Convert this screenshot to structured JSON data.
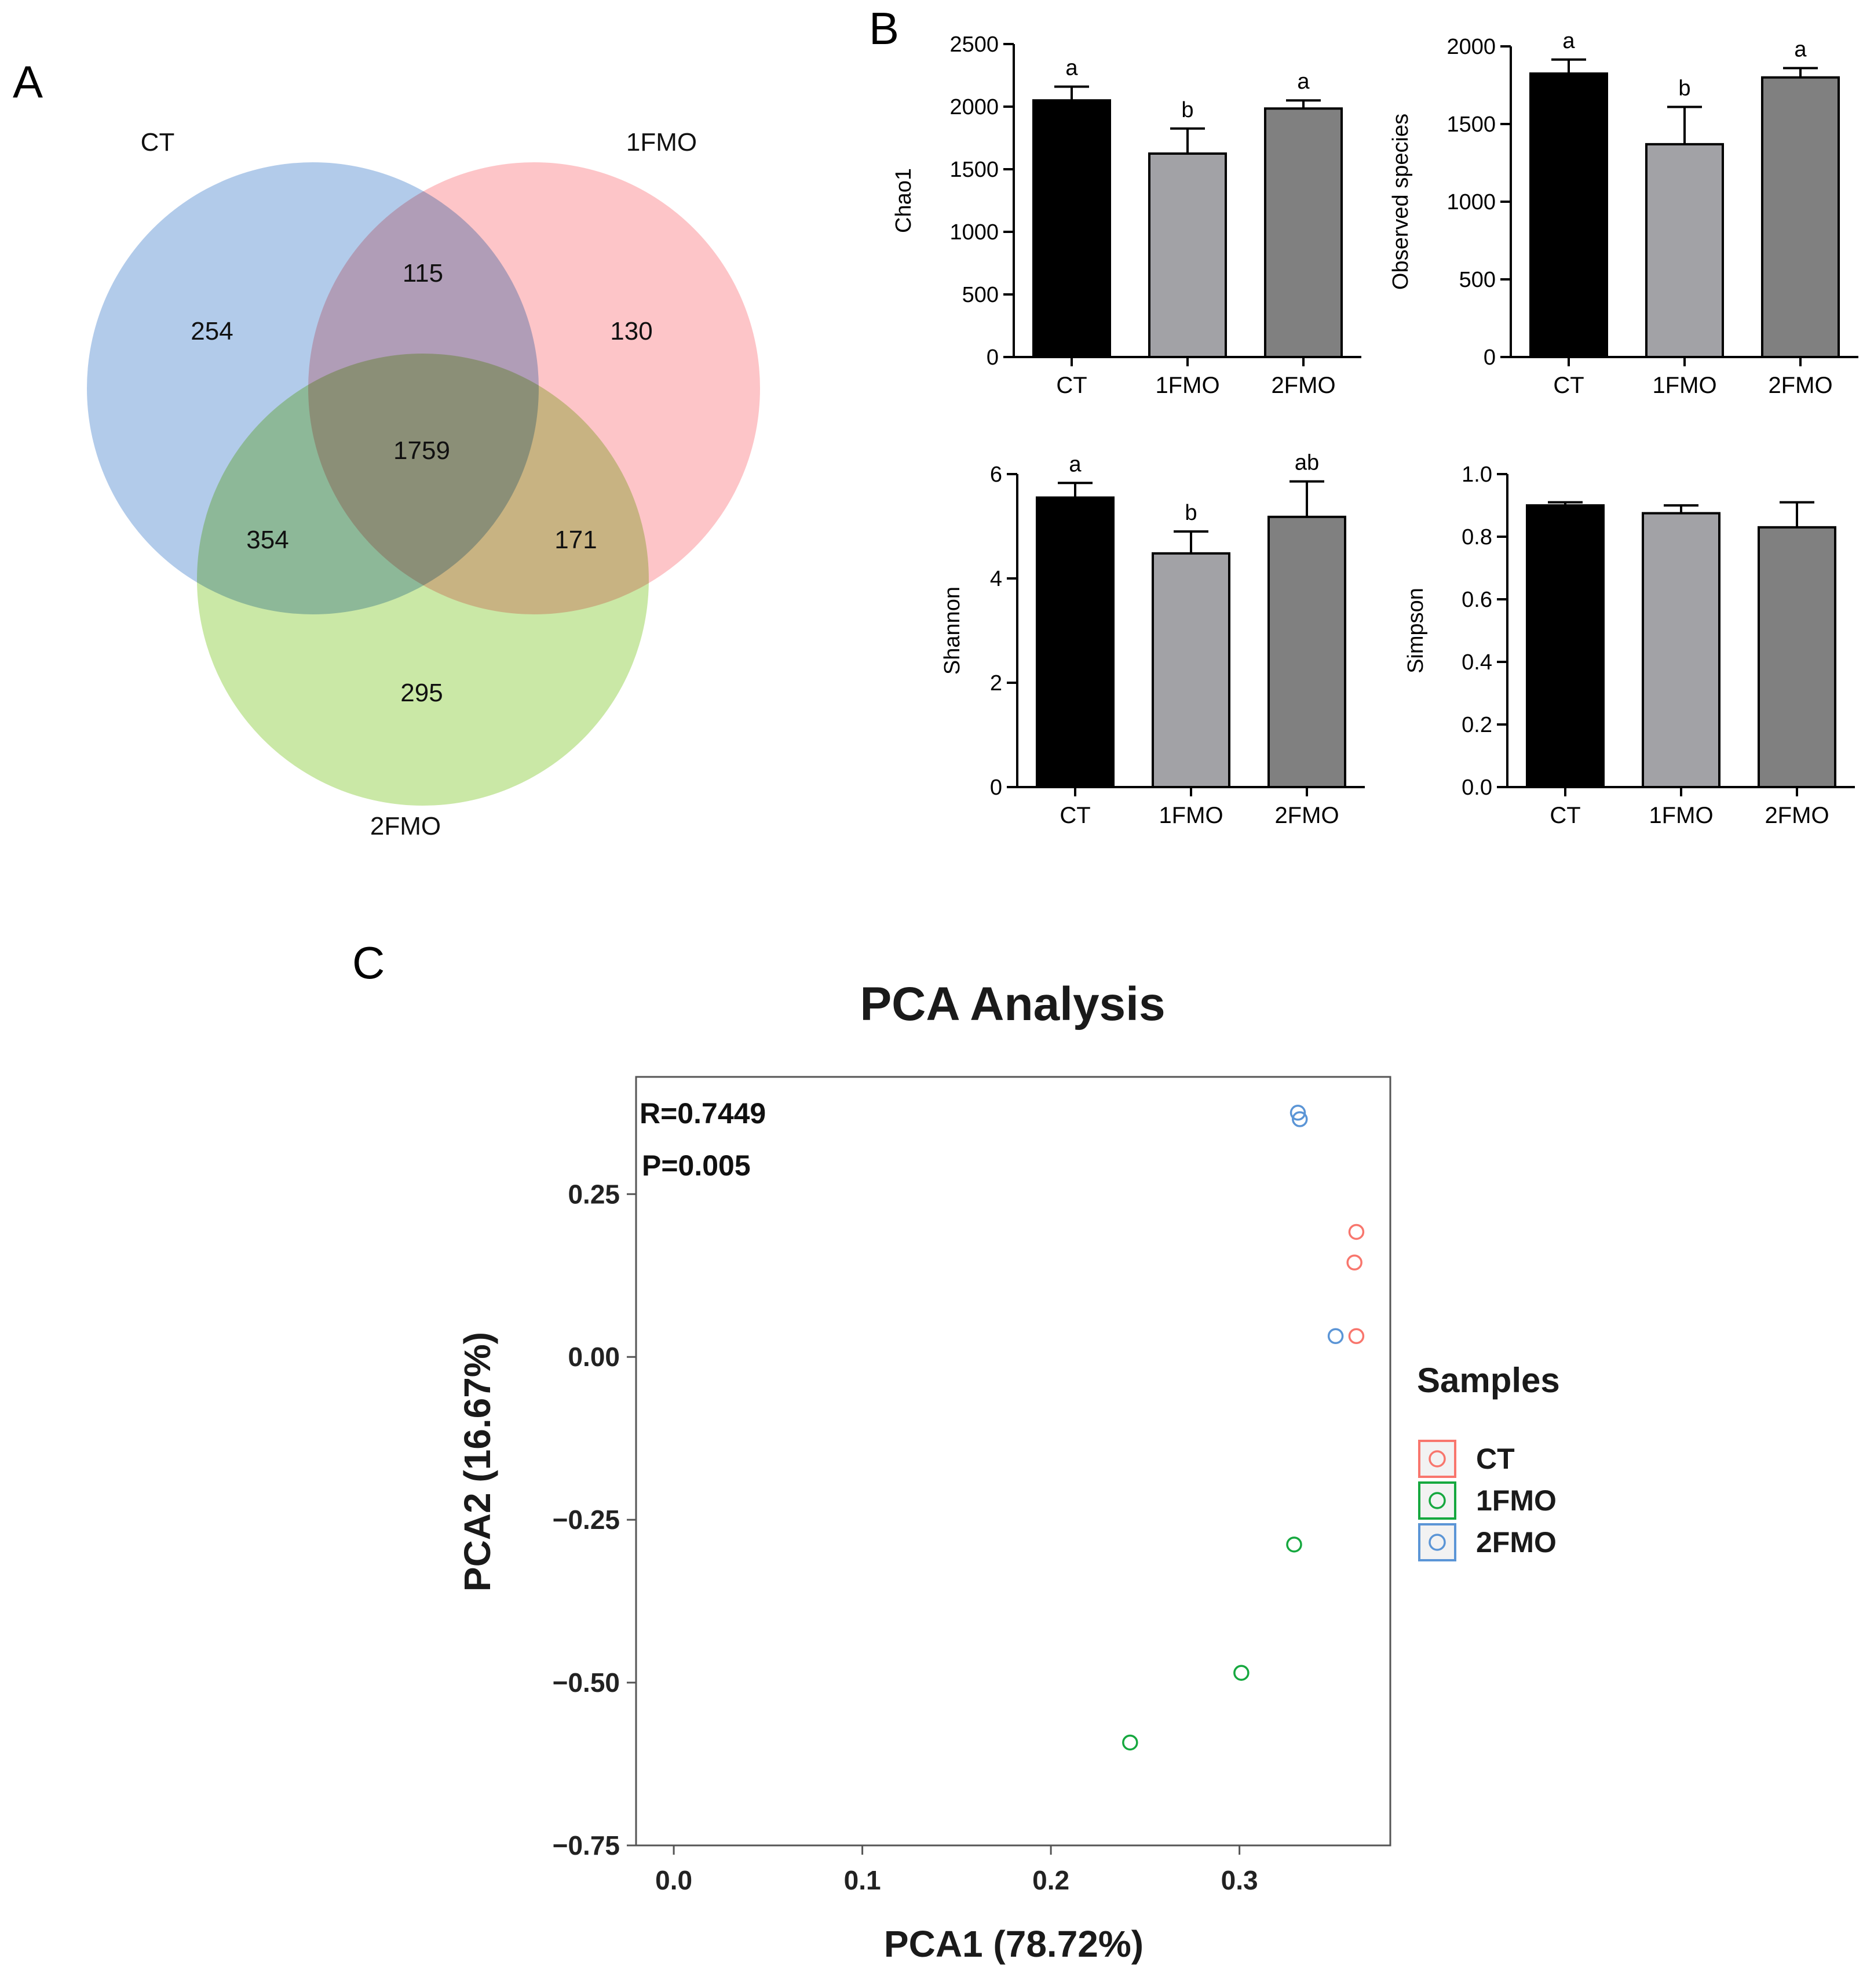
{
  "panel_labels": {
    "a": "A",
    "b": "B",
    "c": "C"
  },
  "venn": {
    "sets": [
      {
        "name": "CT",
        "color": "#7ea9dc"
      },
      {
        "name": "1FMO",
        "color": "#fb9ea4"
      },
      {
        "name": "2FMO",
        "color": "#a6d86b"
      }
    ],
    "counts": {
      "ct_only": "254",
      "fmo1_only": "130",
      "fmo2_only": "295",
      "ct_fmo1": "115",
      "ct_fmo2": "354",
      "fmo1_fmo2": "171",
      "all": "1759"
    }
  },
  "chart_data": [
    {
      "type": "bar",
      "ylabel": "Chao1",
      "categories": [
        "CT",
        "1FMO",
        "2FMO"
      ],
      "values": [
        2050,
        1625,
        1985
      ],
      "errors": [
        110,
        200,
        65
      ],
      "letters": [
        "a",
        "b",
        "a"
      ],
      "ylim": [
        0,
        2500
      ],
      "yticks": [
        "0",
        "500",
        "1000",
        "1500",
        "2000",
        "2500"
      ],
      "colors": [
        "#000000",
        "#a2a2a6",
        "#808080"
      ]
    },
    {
      "type": "bar",
      "ylabel": "Observed species",
      "categories": [
        "CT",
        "1FMO",
        "2FMO"
      ],
      "values": [
        1825,
        1370,
        1800
      ],
      "errors": [
        90,
        240,
        60
      ],
      "letters": [
        "a",
        "b",
        "a"
      ],
      "ylim": [
        0,
        2000
      ],
      "yticks": [
        "0",
        "500",
        "1000",
        "1500",
        "2000"
      ],
      "colors": [
        "#000000",
        "#a2a2a6",
        "#808080"
      ]
    },
    {
      "type": "bar",
      "ylabel": "Shannon",
      "categories": [
        "CT",
        "1FMO",
        "2FMO"
      ],
      "values": [
        5.55,
        4.48,
        5.18
      ],
      "errors": [
        0.28,
        0.42,
        0.68
      ],
      "letters": [
        "a",
        "b",
        "ab"
      ],
      "ylim": [
        0,
        6
      ],
      "yticks": [
        "0",
        "2",
        "4",
        "6"
      ],
      "colors": [
        "#000000",
        "#a2a2a6",
        "#808080"
      ]
    },
    {
      "type": "bar",
      "ylabel": "Simpson",
      "categories": [
        "CT",
        "1FMO",
        "2FMO"
      ],
      "values": [
        0.9,
        0.875,
        0.83
      ],
      "errors": [
        0.01,
        0.025,
        0.08
      ],
      "letters": [
        "",
        "",
        ""
      ],
      "ylim": [
        0,
        1.0
      ],
      "yticks": [
        "0.0",
        "0.2",
        "0.4",
        "0.6",
        "0.8",
        "1.0"
      ],
      "colors": [
        "#000000",
        "#a2a2a6",
        "#808080"
      ]
    },
    {
      "type": "scatter",
      "title": "PCA Analysis",
      "xlabel": "PCA1 (78.72%)",
      "ylabel": "PCA2 (16.67%)",
      "xlim": [
        -0.02,
        0.38
      ],
      "ylim": [
        -0.75,
        0.43
      ],
      "xticks": [
        0.0,
        0.1,
        0.2,
        0.3
      ],
      "xtick_labels": [
        "0.0",
        "0.1",
        "0.2",
        "0.3"
      ],
      "yticks": [
        0.25,
        0.0,
        -0.25,
        -0.5,
        -0.75
      ],
      "ytick_labels": [
        "0.25",
        "0.00",
        "−0.25",
        "−0.50",
        "−0.75"
      ],
      "annotations": [
        "R=0.7449",
        "P=0.005"
      ],
      "legend_title": "Samples",
      "legend_position": "right",
      "series": [
        {
          "name": "CT",
          "color": "#f8766d",
          "points": [
            [
              0.362,
              0.192
            ],
            [
              0.361,
              0.145
            ],
            [
              0.362,
              0.032
            ]
          ]
        },
        {
          "name": "1FMO",
          "color": "#16a83f",
          "points": [
            [
              0.329,
              -0.288
            ],
            [
              0.301,
              -0.485
            ],
            [
              0.242,
              -0.592
            ]
          ]
        },
        {
          "name": "2FMO",
          "color": "#5b95d6",
          "points": [
            [
              0.331,
              0.375
            ],
            [
              0.332,
              0.365
            ],
            [
              0.351,
              0.032
            ]
          ]
        }
      ]
    }
  ]
}
